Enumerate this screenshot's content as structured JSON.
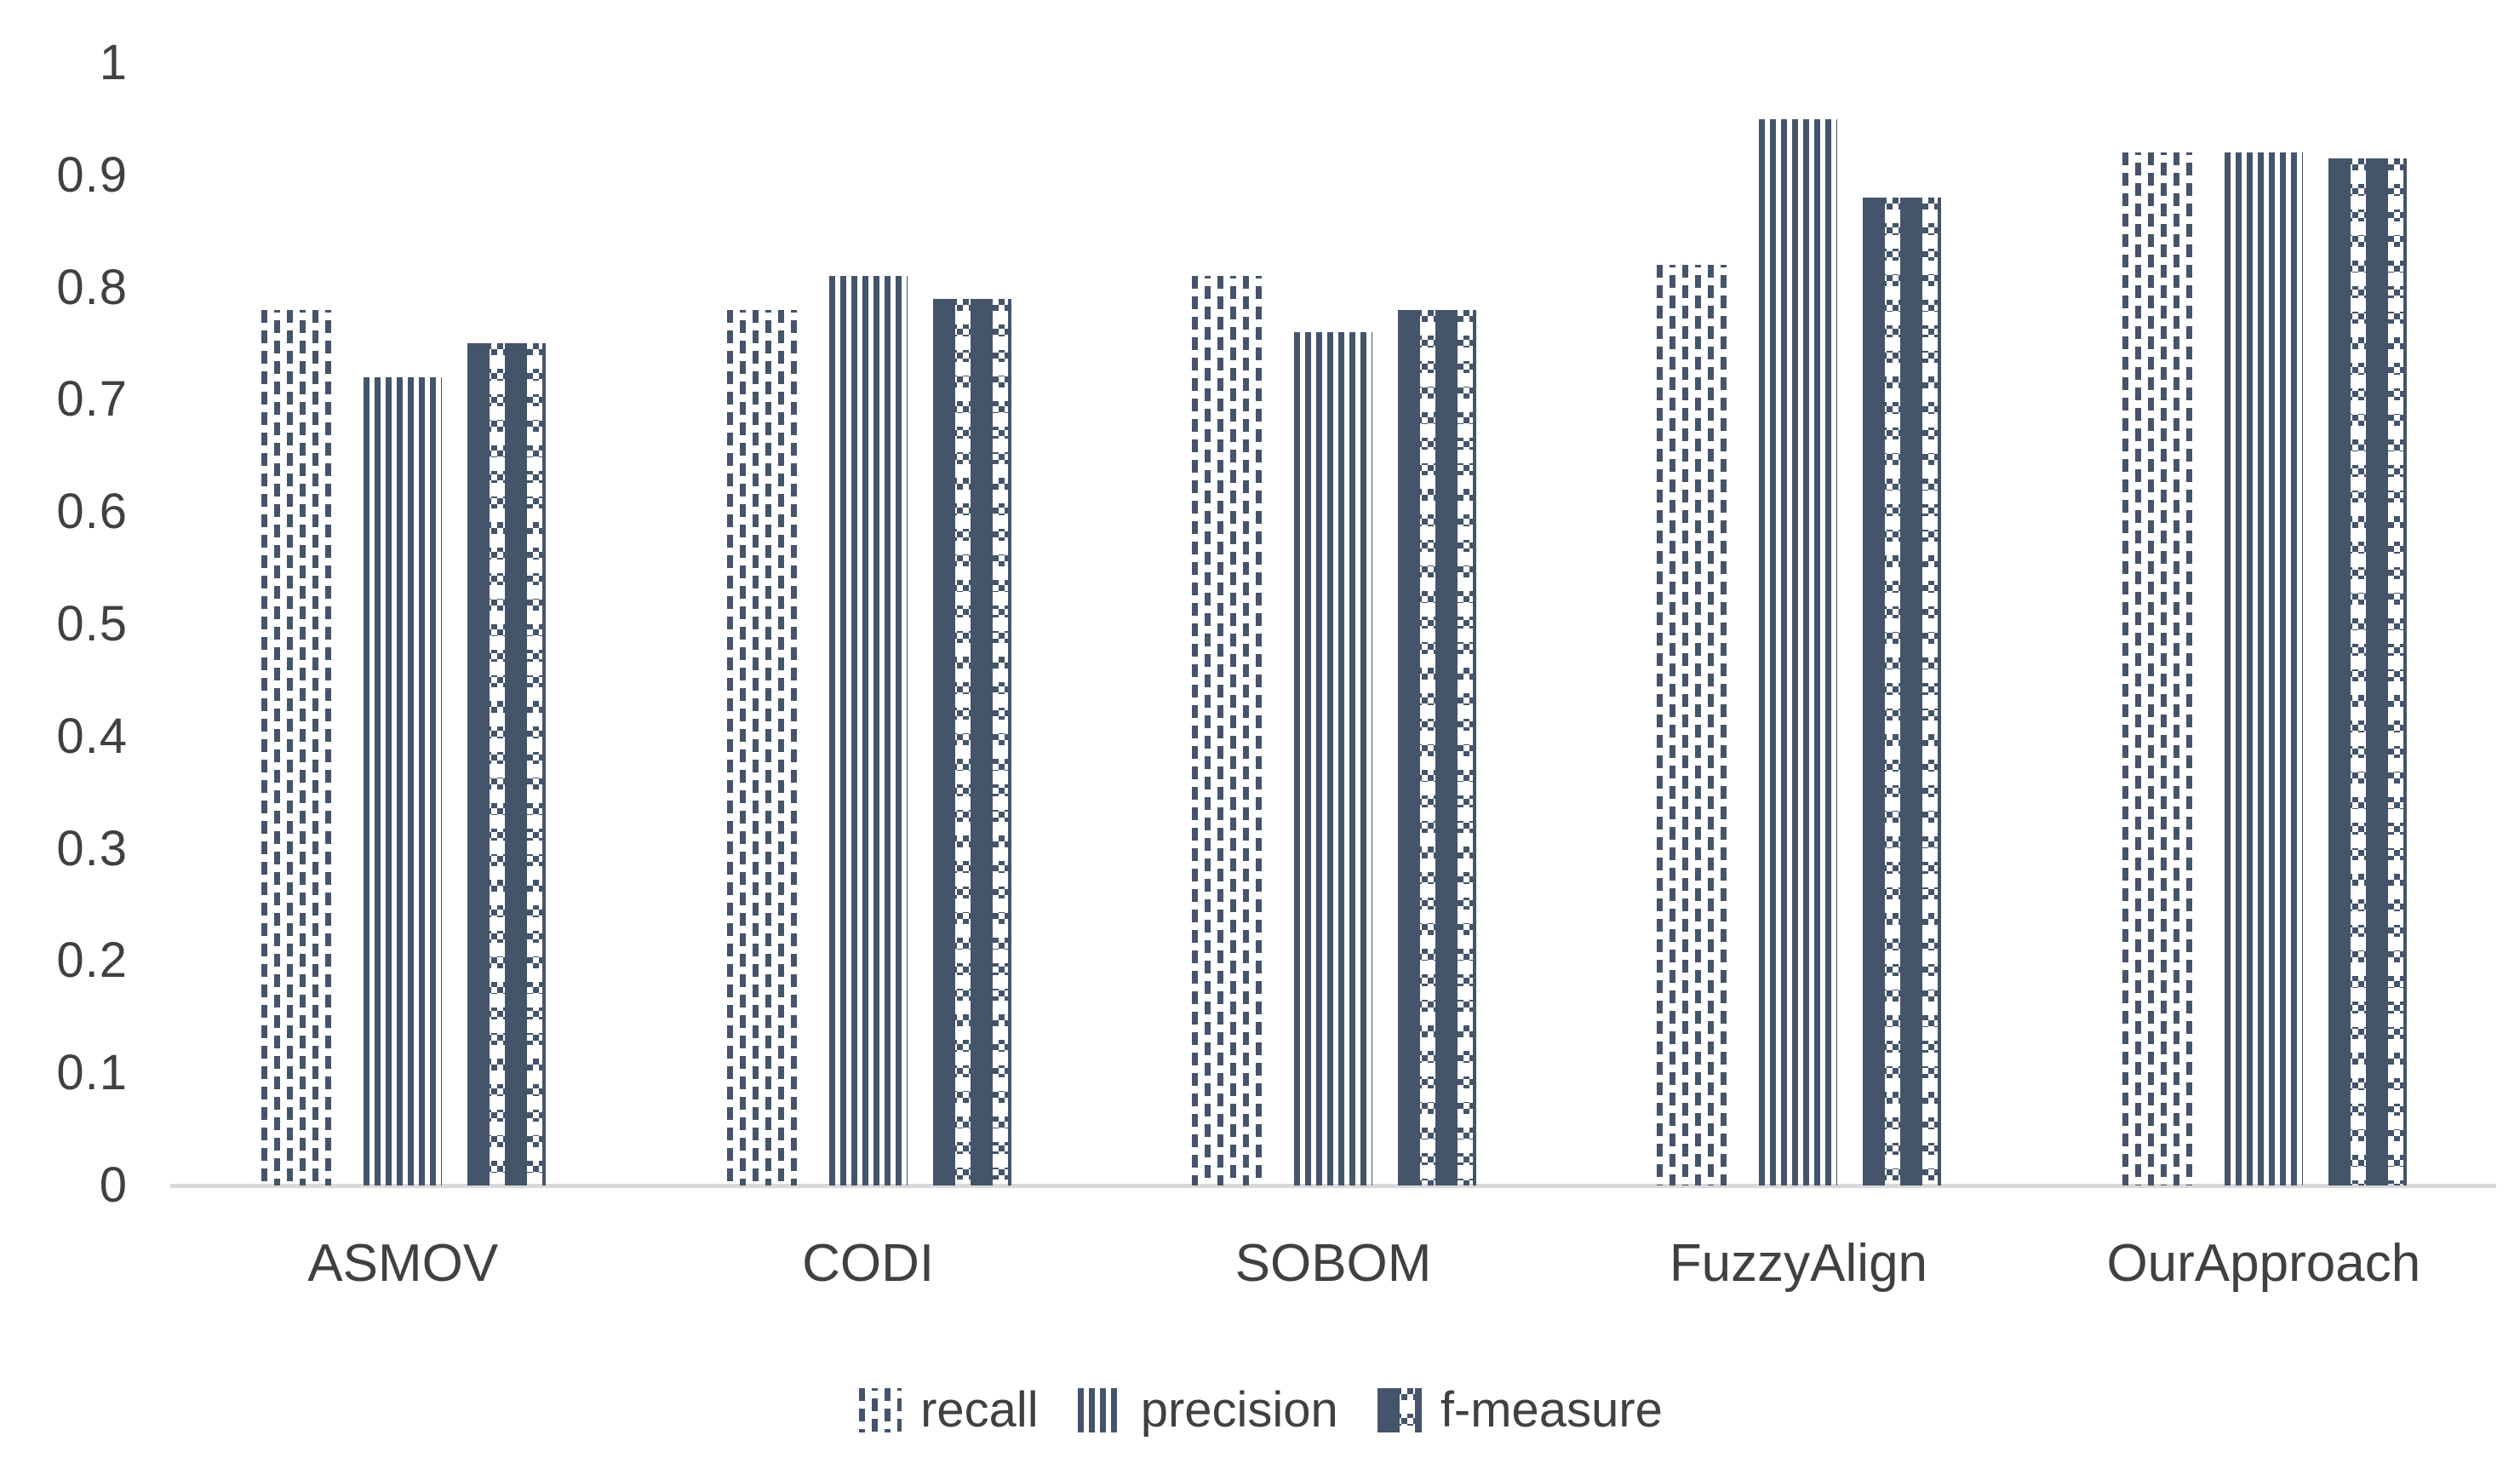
{
  "chart_data": {
    "type": "bar",
    "title": "",
    "xlabel": "",
    "ylabel": "",
    "ylim": [
      0,
      1
    ],
    "y_tick_labels": [
      "0",
      "0.1",
      "0.2",
      "0.3",
      "0.4",
      "0.5",
      "0.6",
      "0.7",
      "0.8",
      "0.9",
      "1"
    ],
    "grid": false,
    "legend_position": "bottom",
    "categories": [
      "ASMOV",
      "CODI",
      "SOBOM",
      "FuzzyAlign",
      "OurApproach"
    ],
    "series": [
      {
        "name": "recall",
        "pattern": "dashed",
        "values": [
          0.78,
          0.78,
          0.81,
          0.82,
          0.92
        ]
      },
      {
        "name": "precision",
        "pattern": "stripes",
        "values": [
          0.72,
          0.81,
          0.76,
          0.95,
          0.92
        ]
      },
      {
        "name": "f-measure",
        "pattern": "checker",
        "values": [
          0.75,
          0.79,
          0.78,
          0.88,
          0.915
        ]
      }
    ]
  },
  "colors": {
    "bar": "#44546A",
    "axis_line": "#d9d9d9",
    "text": "#404040",
    "background": "#ffffff"
  }
}
